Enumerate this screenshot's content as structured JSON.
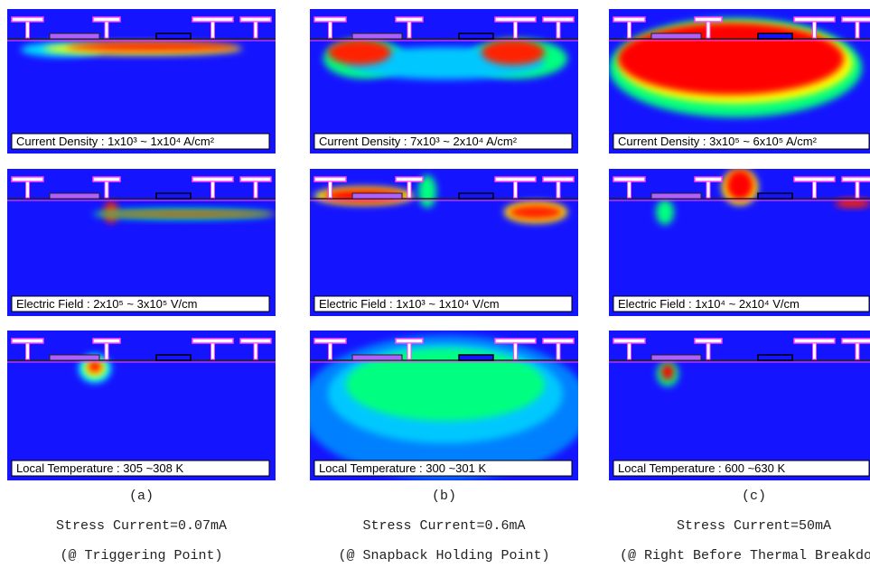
{
  "columns": [
    {
      "panels": [
        {
          "label": "Current Density : 1x10³ ~ 1x10⁴ A/cm²"
        },
        {
          "label": "Electric Field : 2x10⁵ ~ 3x10⁵ V/cm"
        },
        {
          "label": "Local Temperature : 305 ~308 K"
        }
      ],
      "caption": {
        "letter": "(a)",
        "current": "Stress Current=0.07mA",
        "point": "(@ Triggering Point)"
      }
    },
    {
      "panels": [
        {
          "label": "Current Density : 7x10³ ~ 2x10⁴ A/cm²"
        },
        {
          "label": "Electric Field : 1x10³ ~ 1x10⁴ V/cm"
        },
        {
          "label": "Local Temperature : 300 ~301 K"
        }
      ],
      "caption": {
        "letter": "(b)",
        "current": "Stress Current=0.6mA",
        "point": "(@ Snapback Holding Point)"
      }
    },
    {
      "panels": [
        {
          "label": "Current Density : 3x10⁵ ~ 6x10⁵ A/cm²"
        },
        {
          "label": "Electric Field : 1x10⁴ ~ 2x10⁴ V/cm"
        },
        {
          "label": "Local Temperature : 600 ~630 K"
        }
      ],
      "caption": {
        "letter": "(c)",
        "current": "Stress Current=50mA",
        "point": "(@ Right Before Thermal Breakdown)"
      }
    }
  ]
}
